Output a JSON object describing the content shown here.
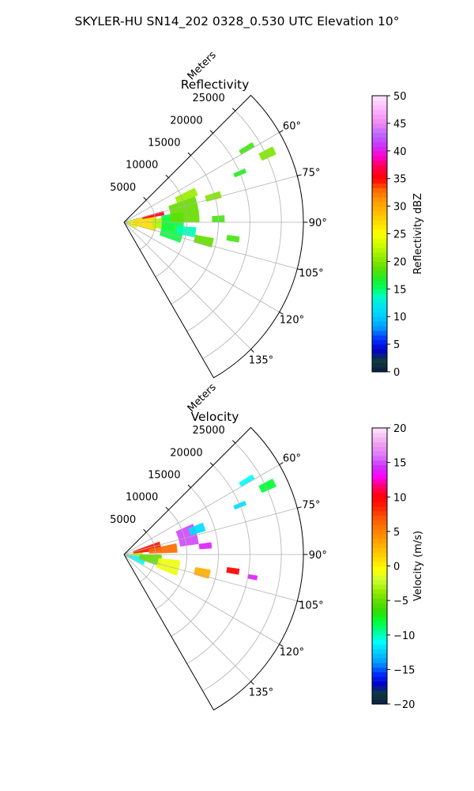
{
  "figure_title": "SKYLER-HU  SN14_202  0328_0.530 UTC Elevation 10°",
  "chart_data": [
    {
      "type": "heatmap",
      "title": "Reflectivity",
      "projection": "polar-sector",
      "radial_label": "Meters",
      "radial_ticks": [
        5000,
        10000,
        15000,
        20000,
        25000
      ],
      "radial_tick_labels": [
        "5000",
        "10000",
        "15000",
        "20000",
        "25000"
      ],
      "radial_max": 28500,
      "azimuth_range": [
        45,
        150
      ],
      "azimuth_ticks": [
        60,
        75,
        90,
        105,
        120,
        135
      ],
      "azimuth_tick_labels": [
        "60°",
        "75°",
        "90°",
        "105°",
        "120°",
        "135°"
      ],
      "grid": true,
      "colorbar": {
        "label": "Reflectivity dBZ",
        "range": [
          0,
          50
        ],
        "ticks": [
          0,
          5,
          10,
          15,
          20,
          25,
          30,
          35,
          40,
          45,
          50
        ],
        "tick_labels": [
          "0",
          "5",
          "10",
          "15",
          "20",
          "25",
          "30",
          "35",
          "40",
          "45",
          "50"
        ],
        "stops": [
          {
            "v": 0,
            "c": "#0b1a4a"
          },
          {
            "v": 2,
            "c": "#0f3d3a"
          },
          {
            "v": 4,
            "c": "#0000cc"
          },
          {
            "v": 6,
            "c": "#0033ff"
          },
          {
            "v": 8,
            "c": "#0099ff"
          },
          {
            "v": 10,
            "c": "#00ccff"
          },
          {
            "v": 12,
            "c": "#00e5ee"
          },
          {
            "v": 14,
            "c": "#00ffbb"
          },
          {
            "v": 15,
            "c": "#00ff66"
          },
          {
            "v": 17,
            "c": "#22ee22"
          },
          {
            "v": 19,
            "c": "#66dd00"
          },
          {
            "v": 21,
            "c": "#99ee00"
          },
          {
            "v": 23,
            "c": "#ccff00"
          },
          {
            "v": 25,
            "c": "#ffff00"
          },
          {
            "v": 27,
            "c": "#ffdd00"
          },
          {
            "v": 29,
            "c": "#ffbb00"
          },
          {
            "v": 31,
            "c": "#ff9900"
          },
          {
            "v": 33,
            "c": "#ff6600"
          },
          {
            "v": 35,
            "c": "#ff0000"
          },
          {
            "v": 37,
            "c": "#ff0044"
          },
          {
            "v": 39,
            "c": "#ff00cc"
          },
          {
            "v": 41,
            "c": "#cc33ff"
          },
          {
            "v": 43,
            "c": "#bb66ff"
          },
          {
            "v": 45,
            "c": "#ee88ee"
          },
          {
            "v": 47,
            "c": "#ffaaff"
          },
          {
            "v": 50,
            "c": "#ffe6ff"
          }
        ]
      },
      "echo_regions": [
        {
          "r": [
            0,
            2200
          ],
          "az": [
            72,
            118
          ],
          "value": 24
        },
        {
          "r": [
            1500,
            5200
          ],
          "az": [
            76,
            106
          ],
          "value": 27
        },
        {
          "r": [
            3000,
            6500
          ],
          "az": [
            74,
            80
          ],
          "value": 36
        },
        {
          "r": [
            4500,
            8000
          ],
          "az": [
            84,
            100
          ],
          "value": 22
        },
        {
          "r": [
            6000,
            9500
          ],
          "az": [
            80,
            110
          ],
          "value": 16
        },
        {
          "r": [
            7500,
            12000
          ],
          "az": [
            70,
            90
          ],
          "value": 19
        },
        {
          "r": [
            9000,
            12500
          ],
          "az": [
            64,
            70
          ],
          "value": 21
        },
        {
          "r": [
            8500,
            11500
          ],
          "az": [
            94,
            102
          ],
          "value": 14
        },
        {
          "r": [
            11500,
            14500
          ],
          "az": [
            100,
            106
          ],
          "value": 19
        },
        {
          "r": [
            13500,
            16000
          ],
          "az": [
            72,
            76
          ],
          "value": 20
        },
        {
          "r": [
            14000,
            16000
          ],
          "az": [
            86,
            90
          ],
          "value": 18
        },
        {
          "r": [
            16500,
            18500
          ],
          "az": [
            97,
            100
          ],
          "value": 18
        },
        {
          "r": [
            19000,
            21000
          ],
          "az": [
            66,
            68
          ],
          "value": 17
        },
        {
          "r": [
            21500,
            24000
          ],
          "az": [
            58,
            60
          ],
          "value": 18
        },
        {
          "r": [
            24000,
            26500
          ],
          "az": [
            63,
            66
          ],
          "value": 20
        }
      ]
    },
    {
      "type": "heatmap",
      "title": "Velocity",
      "projection": "polar-sector",
      "radial_label": "Meters",
      "radial_ticks": [
        5000,
        10000,
        15000,
        20000,
        25000
      ],
      "radial_tick_labels": [
        "5000",
        "10000",
        "15000",
        "20000",
        "25000"
      ],
      "radial_max": 28500,
      "azimuth_range": [
        45,
        150
      ],
      "azimuth_ticks": [
        60,
        75,
        90,
        105,
        120,
        135
      ],
      "azimuth_tick_labels": [
        "60°",
        "75°",
        "90°",
        "105°",
        "120°",
        "135°"
      ],
      "grid": true,
      "colorbar": {
        "label": "Velocity (m/s)",
        "range": [
          -20,
          20
        ],
        "ticks": [
          -20,
          -15,
          -10,
          -5,
          0,
          5,
          10,
          15,
          20
        ],
        "tick_labels": [
          "−20",
          "−15",
          "−10",
          "−5",
          "0",
          "5",
          "10",
          "15",
          "20"
        ],
        "stops": [
          {
            "v": -20,
            "c": "#0b1a4a"
          },
          {
            "v": -18.5,
            "c": "#0f3d3a"
          },
          {
            "v": -17,
            "c": "#0000cc"
          },
          {
            "v": -15.5,
            "c": "#0033ff"
          },
          {
            "v": -14,
            "c": "#0099ff"
          },
          {
            "v": -12.5,
            "c": "#00ccff"
          },
          {
            "v": -11,
            "c": "#00ffff"
          },
          {
            "v": -9.5,
            "c": "#00ff99"
          },
          {
            "v": -8,
            "c": "#00ff33"
          },
          {
            "v": -6.5,
            "c": "#33dd00"
          },
          {
            "v": -5,
            "c": "#66dd00"
          },
          {
            "v": -3.5,
            "c": "#99ee00"
          },
          {
            "v": -2,
            "c": "#ccff33"
          },
          {
            "v": -0.5,
            "c": "#ffff00"
          },
          {
            "v": 1,
            "c": "#ffdd00"
          },
          {
            "v": 2.5,
            "c": "#ffbb00"
          },
          {
            "v": 4,
            "c": "#ff9900"
          },
          {
            "v": 5.5,
            "c": "#ff7700"
          },
          {
            "v": 7,
            "c": "#ff5500"
          },
          {
            "v": 8.5,
            "c": "#ff2200"
          },
          {
            "v": 10,
            "c": "#ff0000"
          },
          {
            "v": 11.5,
            "c": "#ff0066"
          },
          {
            "v": 13,
            "c": "#ff00ff"
          },
          {
            "v": 14.5,
            "c": "#cc33ff"
          },
          {
            "v": 16,
            "c": "#dd77ff"
          },
          {
            "v": 17.5,
            "c": "#ee99ee"
          },
          {
            "v": 20,
            "c": "#ffe6ff"
          }
        ]
      },
      "echo_regions": [
        {
          "r": [
            0,
            3500
          ],
          "az": [
            96,
            118
          ],
          "value": -11
        },
        {
          "r": [
            0,
            3000
          ],
          "az": [
            84,
            96
          ],
          "value": -3
        },
        {
          "r": [
            2500,
            6000
          ],
          "az": [
            90,
            108
          ],
          "value": -5
        },
        {
          "r": [
            5500,
            9000
          ],
          "az": [
            96,
            112
          ],
          "value": -1
        },
        {
          "r": [
            1500,
            6000
          ],
          "az": [
            70,
            84
          ],
          "value": 9
        },
        {
          "r": [
            4000,
            8500
          ],
          "az": [
            78,
            88
          ],
          "value": 6
        },
        {
          "r": [
            9000,
            12000
          ],
          "az": [
            66,
            82
          ],
          "value": 15
        },
        {
          "r": [
            11000,
            13500
          ],
          "az": [
            68,
            74
          ],
          "value": -12
        },
        {
          "r": [
            12000,
            14000
          ],
          "az": [
            82,
            86
          ],
          "value": 14
        },
        {
          "r": [
            11500,
            14000
          ],
          "az": [
            100,
            106
          ],
          "value": 3
        },
        {
          "r": [
            16500,
            18500
          ],
          "az": [
            97,
            100
          ],
          "value": 10
        },
        {
          "r": [
            19000,
            21000
          ],
          "az": [
            66,
            68
          ],
          "value": -12
        },
        {
          "r": [
            21500,
            24000
          ],
          "az": [
            58,
            60
          ],
          "value": -11
        },
        {
          "r": [
            24000,
            26500
          ],
          "az": [
            63,
            66
          ],
          "value": -8
        },
        {
          "r": [
            20000,
            21500
          ],
          "az": [
            99,
            101
          ],
          "value": 14
        }
      ]
    }
  ]
}
